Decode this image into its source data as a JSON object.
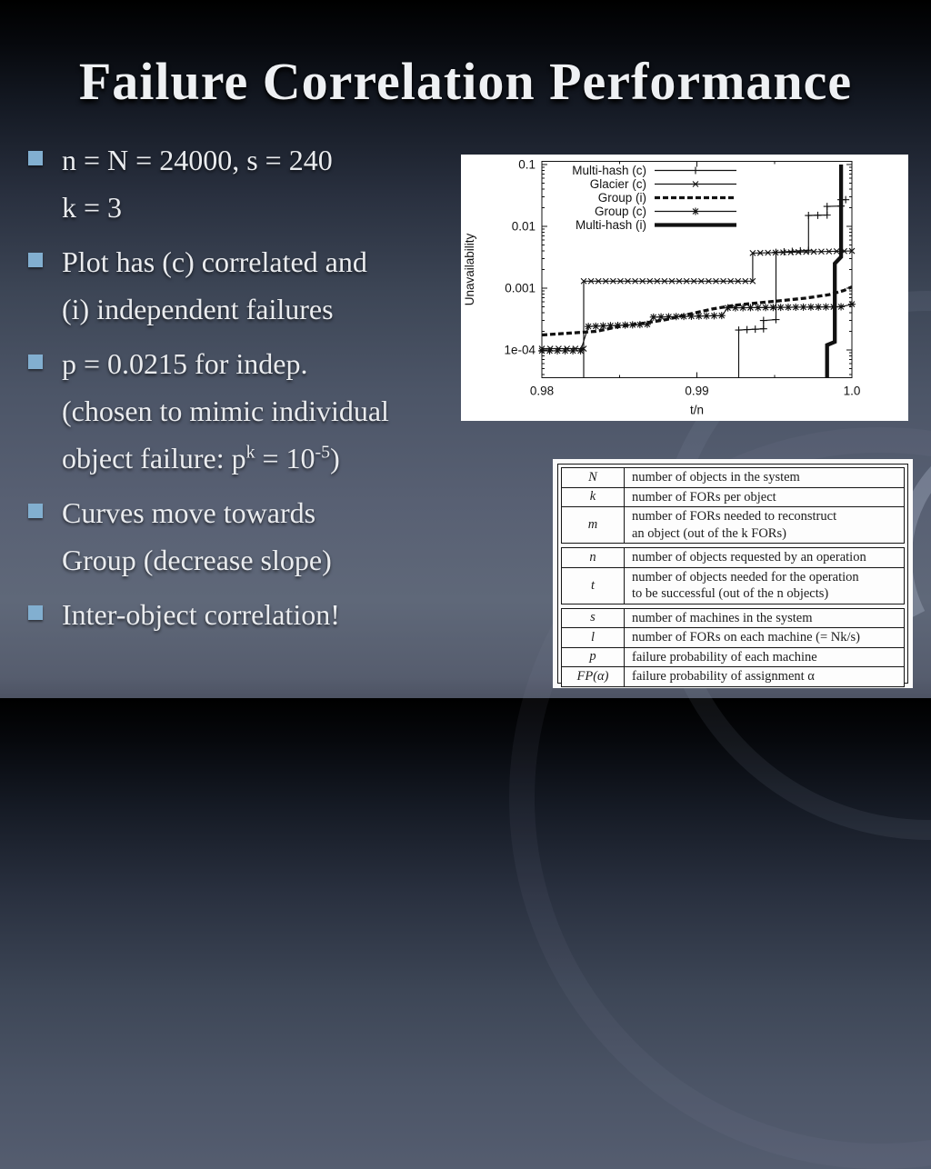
{
  "slide": {
    "title": "Failure Correlation Performance",
    "accent_color": "#82afd0",
    "bullets": [
      {
        "lines": [
          "n = N = 24000, s = 240",
          "k = 3"
        ]
      },
      {
        "lines": [
          "Plot has (c) correlated and",
          "(i) independent failures"
        ]
      },
      {
        "lines": [
          "p = 0.0215 for indep.",
          "(chosen to mimic individual",
          {
            "parts": [
              {
                "text": "object failure: p"
              },
              {
                "text": "k",
                "sup": true
              },
              {
                "text": " = 10"
              },
              {
                "text": "-5",
                "sup": true
              },
              {
                "text": ")"
              }
            ]
          }
        ]
      },
      {
        "lines": [
          "Curves move towards",
          "Group (decrease slope)"
        ]
      },
      {
        "lines": [
          "Inter-object correlation!"
        ]
      }
    ]
  },
  "chart_data": {
    "type": "line",
    "title": "",
    "xlabel": "t/n",
    "ylabel": "Unavailability",
    "xlim": [
      0.98,
      1.0
    ],
    "ylim": [
      3.6e-05,
      0.1
    ],
    "yscale": "log",
    "grid": false,
    "legend_position": "top-left-inside",
    "xticks": [
      0.98,
      0.99,
      1.0
    ],
    "xtick_labels": [
      "0.98",
      "0.99",
      "1.0"
    ],
    "xminor_ticks": [
      0.985,
      0.995
    ],
    "yticks": [
      0.1,
      0.01,
      0.001,
      0.0001
    ],
    "ytick_labels": [
      "0.1",
      "0.01",
      "0.001",
      "1e-04"
    ],
    "fg_color": "#111111",
    "bg_color": "#ffffff",
    "series": [
      {
        "name": "Multi-hash (c)",
        "style": "thin",
        "marker": "plus",
        "points": [
          [
            0.9927,
            3.6e-05
          ],
          [
            0.9927,
            0.00021
          ],
          [
            0.9943,
            0.00022
          ],
          [
            0.9943,
            0.0003
          ],
          [
            0.9951,
            0.00031
          ],
          [
            0.9951,
            0.0038
          ],
          [
            0.9972,
            0.0041
          ],
          [
            0.9972,
            0.015
          ],
          [
            0.9984,
            0.0152
          ],
          [
            0.9984,
            0.021
          ],
          [
            0.9993,
            0.0213
          ],
          [
            0.9993,
            0.027
          ],
          [
            0.9996,
            0.027
          ]
        ]
      },
      {
        "name": "Glacier (c)",
        "style": "thin",
        "marker": "x",
        "points": [
          [
            0.98,
            0.000105
          ],
          [
            0.9827,
            0.000105
          ],
          [
            0.9827,
            3.6e-05
          ],
          [
            0.9827,
            0.0013
          ],
          [
            0.9936,
            0.0013
          ],
          [
            0.9936,
            0.0037
          ],
          [
            1.0,
            0.004
          ]
        ]
      },
      {
        "name": "Group (i)",
        "style": "thick-dashed",
        "marker": null,
        "points": [
          [
            0.98,
            0.000175
          ],
          [
            0.9835,
            0.0002
          ],
          [
            0.985,
            0.00024
          ],
          [
            0.9865,
            0.00027
          ],
          [
            0.988,
            0.00031
          ],
          [
            0.9895,
            0.00038
          ],
          [
            0.991,
            0.00046
          ],
          [
            0.9925,
            0.00053
          ],
          [
            0.994,
            0.00058
          ],
          [
            0.9955,
            0.00063
          ],
          [
            0.997,
            0.00069
          ],
          [
            0.9985,
            0.00078
          ],
          [
            0.9995,
            0.00092
          ],
          [
            1.0,
            0.00105
          ]
        ]
      },
      {
        "name": "Group (c)",
        "style": "thin",
        "marker": "asterisk",
        "points": [
          [
            0.98,
            9.7e-05
          ],
          [
            0.9825,
            9.7e-05
          ],
          [
            0.983,
            0.00024
          ],
          [
            0.9868,
            0.00026
          ],
          [
            0.9872,
            0.00034
          ],
          [
            0.9916,
            0.00036
          ],
          [
            0.992,
            0.00048
          ],
          [
            0.9993,
            0.0005
          ],
          [
            1.0,
            0.00055
          ]
        ]
      },
      {
        "name": "Multi-hash (i)",
        "style": "thick",
        "marker": null,
        "points": [
          [
            0.9984,
            3.6e-05
          ],
          [
            0.9984,
            0.00012
          ],
          [
            0.9989,
            0.000135
          ],
          [
            0.9989,
            0.0025
          ],
          [
            0.9993,
            0.0032
          ],
          [
            0.9993,
            0.1
          ]
        ]
      }
    ]
  },
  "table": {
    "groups": [
      {
        "rows": [
          {
            "symbol": "N",
            "desc": "number of objects in the system"
          },
          {
            "symbol": "k",
            "desc": "number of FORs per object"
          },
          {
            "symbol": "m",
            "desc": "number of FORs needed to reconstruct\nan object (out of the k FORs)"
          }
        ]
      },
      {
        "rows": [
          {
            "symbol": "n",
            "desc": "number of objects requested by an operation"
          },
          {
            "symbol": "t",
            "desc": "number of objects needed for the operation\nto be successful (out of the n objects)"
          }
        ]
      },
      {
        "rows": [
          {
            "symbol": "s",
            "desc": "number of machines in the system"
          },
          {
            "symbol": "l",
            "desc": "number of FORs on each machine (= Nk/s)"
          },
          {
            "symbol": "p",
            "desc": "failure probability of each machine"
          },
          {
            "symbol": "FP(α)",
            "desc": "failure probability of assignment α"
          }
        ]
      }
    ]
  }
}
